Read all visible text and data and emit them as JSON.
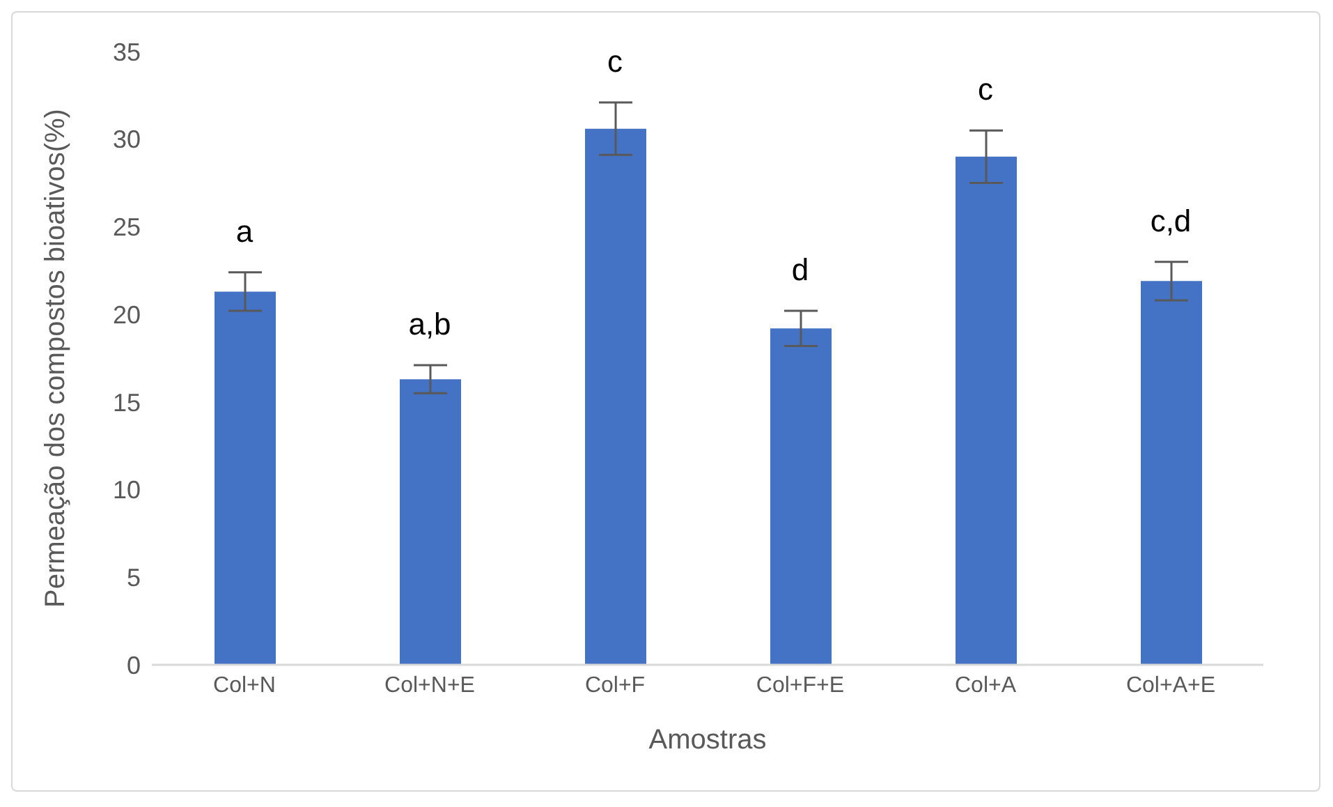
{
  "chart_data": {
    "type": "bar",
    "xlabel": "Amostras",
    "ylabel": "Permeação dos compostos bioativos(%)",
    "categories": [
      "Col+N",
      "Col+N+E",
      "Col+F",
      "Col+F+E",
      "Col+A",
      "Col+A+E"
    ],
    "values": [
      21.3,
      16.3,
      30.6,
      19.2,
      29.0,
      21.9
    ],
    "errors": [
      1.1,
      0.8,
      1.5,
      1.0,
      1.5,
      1.1
    ],
    "color": "#4472c4",
    "ylim": [
      0,
      35
    ],
    "yticks": [
      0,
      5,
      10,
      15,
      20,
      25,
      30,
      35
    ],
    "grid": false,
    "legend": false,
    "annotations": [
      "a",
      "a,b",
      "c",
      "d",
      "c",
      "c,d"
    ]
  }
}
